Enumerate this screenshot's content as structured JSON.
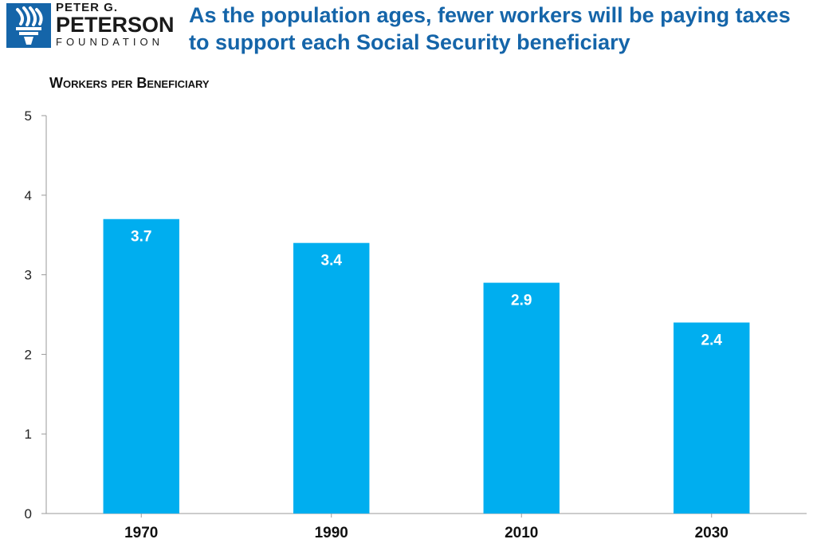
{
  "logo": {
    "line1": "PETER G.",
    "line2": "PETERSON",
    "line3": "FOUNDATION"
  },
  "headline": "As the population ages, fewer workers will be paying taxes to support each Social Security beneficiary",
  "colors": {
    "bar": "#00aeef",
    "brand": "#1565a9",
    "axis": "#9a9a9a",
    "bar_label": "#ffffff"
  },
  "chart_data": {
    "type": "bar",
    "ylabel": "Workers per Beneficiary",
    "categories": [
      "1970",
      "1990",
      "2010",
      "2030"
    ],
    "values": [
      3.7,
      3.4,
      2.9,
      2.4
    ],
    "data_labels": [
      "3.7",
      "3.4",
      "2.9",
      "2.4"
    ],
    "ylim": [
      0,
      5
    ],
    "yticks": [
      0,
      1,
      2,
      3,
      4,
      5
    ],
    "grid": false,
    "legend": "none"
  }
}
